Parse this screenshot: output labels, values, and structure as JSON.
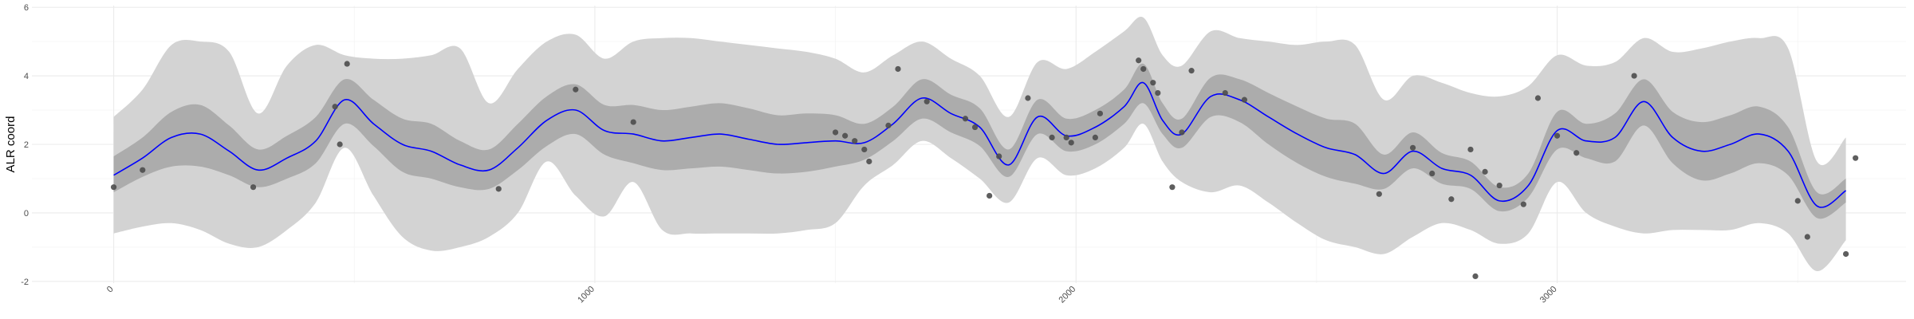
{
  "chart_data": {
    "type": "line",
    "title": "",
    "xlabel": "",
    "ylabel": "ALR coord",
    "xlim": [
      -170,
      3725
    ],
    "ylim": [
      -2.05,
      6.05
    ],
    "x_ticks": [
      0,
      1000,
      2000,
      3000
    ],
    "y_ticks": [
      -2,
      0,
      2,
      4,
      6
    ],
    "x_tick_labels": [
      "0",
      "1000",
      "2000",
      "3000"
    ],
    "y_tick_labels": [
      "-2",
      "0",
      "2",
      "4",
      "6"
    ],
    "grid": true,
    "colors": {
      "mean_line": "#0000ff",
      "inner_band": "#acacac",
      "outer_band": "#d3d3d3",
      "points": "#4d4d4d",
      "grid": "#ebebeb"
    },
    "series": [
      {
        "type": "line",
        "x": [
          0,
          60,
          120,
          180,
          240,
          300,
          360,
          420,
          480,
          540,
          600,
          660,
          720,
          780,
          840,
          900,
          960,
          1020,
          1080,
          1140,
          1200,
          1260,
          1320,
          1380,
          1440,
          1500,
          1560,
          1620,
          1680,
          1740,
          1800,
          1860,
          1920,
          1980,
          2040,
          2100,
          2140,
          2180,
          2220,
          2280,
          2340,
          2400,
          2460,
          2520,
          2580,
          2640,
          2700,
          2760,
          2820,
          2880,
          2940,
          3000,
          3060,
          3120,
          3180,
          3240,
          3300,
          3360,
          3420,
          3480,
          3540,
          3600
        ],
        "y": [
          1.1,
          1.6,
          2.2,
          2.3,
          1.8,
          1.25,
          1.6,
          2.1,
          3.3,
          2.6,
          2.0,
          1.8,
          1.4,
          1.25,
          1.9,
          2.7,
          3.0,
          2.4,
          2.3,
          2.1,
          2.2,
          2.3,
          2.15,
          2.0,
          2.05,
          2.1,
          2.05,
          2.6,
          3.35,
          2.9,
          2.5,
          1.4,
          2.8,
          2.25,
          2.5,
          3.1,
          3.8,
          2.7,
          2.3,
          3.4,
          3.3,
          2.8,
          2.3,
          1.9,
          1.7,
          1.15,
          1.8,
          1.3,
          1.1,
          0.35,
          0.8,
          2.4,
          2.1,
          2.2,
          3.25,
          2.2,
          1.8,
          2.0,
          2.3,
          1.8,
          0.2,
          0.65
        ]
      },
      {
        "type": "band",
        "name": "inner",
        "x": [
          0,
          60,
          120,
          180,
          240,
          300,
          360,
          420,
          480,
          540,
          600,
          660,
          720,
          780,
          840,
          900,
          960,
          1020,
          1080,
          1140,
          1200,
          1260,
          1320,
          1380,
          1440,
          1500,
          1560,
          1620,
          1680,
          1740,
          1800,
          1860,
          1920,
          1980,
          2040,
          2100,
          2140,
          2180,
          2220,
          2280,
          2340,
          2400,
          2460,
          2520,
          2580,
          2640,
          2700,
          2760,
          2820,
          2880,
          2940,
          3000,
          3060,
          3120,
          3180,
          3240,
          3300,
          3360,
          3420,
          3480,
          3540,
          3600
        ],
        "lower": [
          0.6,
          1.05,
          1.35,
          1.35,
          1.1,
          0.75,
          1.0,
          1.45,
          2.6,
          1.95,
          1.2,
          1.0,
          0.75,
          0.7,
          1.25,
          1.95,
          2.3,
          1.7,
          1.45,
          1.25,
          1.3,
          1.35,
          1.25,
          1.15,
          1.2,
          1.35,
          1.55,
          2.1,
          2.75,
          2.35,
          1.95,
          1.05,
          2.3,
          1.8,
          2.0,
          2.6,
          3.2,
          2.3,
          1.9,
          2.8,
          2.65,
          2.0,
          1.45,
          1.05,
          0.85,
          0.7,
          1.3,
          0.85,
          0.7,
          0.05,
          0.45,
          1.85,
          1.6,
          1.5,
          2.55,
          1.45,
          0.95,
          1.15,
          1.45,
          1.1,
          -0.15,
          0.3
        ],
        "upper": [
          1.65,
          2.2,
          2.95,
          3.15,
          2.55,
          1.85,
          2.25,
          2.8,
          3.9,
          3.3,
          2.75,
          2.6,
          2.1,
          1.85,
          2.6,
          3.4,
          3.75,
          3.15,
          3.15,
          3.0,
          3.1,
          3.2,
          3.05,
          2.85,
          2.9,
          2.85,
          2.6,
          3.1,
          3.9,
          3.45,
          3.05,
          1.85,
          3.3,
          2.75,
          3.0,
          3.6,
          4.35,
          3.2,
          2.75,
          3.95,
          3.9,
          3.5,
          3.1,
          2.75,
          2.6,
          1.7,
          2.35,
          1.75,
          1.5,
          0.75,
          1.15,
          2.95,
          2.6,
          2.9,
          3.9,
          2.95,
          2.65,
          2.85,
          3.1,
          2.5,
          0.6,
          1.0
        ]
      },
      {
        "type": "band",
        "name": "outer",
        "x": [
          0,
          60,
          120,
          180,
          240,
          300,
          360,
          420,
          480,
          540,
          600,
          660,
          720,
          780,
          840,
          900,
          960,
          1020,
          1080,
          1140,
          1200,
          1260,
          1320,
          1380,
          1440,
          1500,
          1560,
          1620,
          1680,
          1740,
          1800,
          1860,
          1920,
          1980,
          2040,
          2100,
          2140,
          2180,
          2220,
          2280,
          2340,
          2400,
          2460,
          2520,
          2580,
          2640,
          2700,
          2760,
          2820,
          2880,
          2940,
          3000,
          3060,
          3120,
          3180,
          3240,
          3300,
          3360,
          3420,
          3480,
          3540,
          3600
        ],
        "lower": [
          -0.6,
          -0.4,
          -0.3,
          -0.5,
          -0.9,
          -1.0,
          -0.5,
          0.3,
          1.9,
          0.5,
          -0.7,
          -1.1,
          -1.0,
          -0.7,
          0.0,
          1.5,
          0.5,
          -0.1,
          0.9,
          -0.5,
          -0.6,
          -0.6,
          -0.6,
          -0.6,
          -0.5,
          -0.3,
          0.8,
          1.4,
          2.1,
          1.6,
          1.0,
          0.3,
          1.6,
          1.1,
          1.3,
          1.9,
          2.6,
          1.5,
          0.9,
          0.6,
          0.8,
          0.3,
          -0.3,
          -0.8,
          -1.0,
          -1.2,
          -0.7,
          -0.3,
          -0.5,
          -0.9,
          -0.6,
          0.9,
          0.0,
          -0.4,
          -0.6,
          -0.5,
          -0.5,
          -0.5,
          -0.3,
          -0.6,
          -1.7,
          -0.8
        ],
        "upper": [
          2.8,
          3.6,
          4.9,
          5.0,
          4.7,
          2.9,
          4.3,
          4.9,
          4.6,
          4.5,
          4.5,
          4.6,
          4.8,
          3.2,
          4.2,
          5.0,
          5.2,
          4.5,
          5.0,
          5.1,
          5.1,
          5.0,
          4.9,
          4.8,
          4.7,
          4.5,
          4.1,
          4.6,
          5.0,
          4.5,
          4.0,
          2.8,
          4.4,
          4.2,
          4.7,
          5.3,
          5.7,
          4.6,
          4.3,
          5.3,
          5.1,
          5.0,
          4.9,
          5.0,
          4.9,
          3.3,
          4.0,
          3.8,
          3.5,
          3.4,
          3.7,
          4.6,
          4.3,
          4.4,
          5.1,
          4.7,
          4.8,
          5.0,
          5.1,
          4.8,
          1.5,
          2.2
        ]
      },
      {
        "type": "scatter",
        "x": [
          0,
          60,
          290,
          460,
          470,
          485,
          800,
          960,
          1080,
          1500,
          1520,
          1540,
          1560,
          1570,
          1610,
          1630,
          1690,
          1770,
          1790,
          1820,
          1840,
          1900,
          1950,
          1980,
          1990,
          2040,
          2050,
          2130,
          2140,
          2160,
          2170,
          2200,
          2220,
          2240,
          2310,
          2350,
          2630,
          2700,
          2740,
          2780,
          2820,
          2830,
          2850,
          2880,
          2930,
          2960,
          3000,
          3040,
          3160,
          3500,
          3520,
          3600,
          3620
        ],
        "y": [
          0.75,
          1.25,
          0.75,
          3.1,
          2.0,
          4.35,
          0.7,
          3.6,
          2.65,
          2.35,
          2.25,
          2.1,
          1.85,
          1.5,
          2.55,
          4.2,
          3.25,
          2.75,
          2.5,
          0.5,
          1.65,
          3.35,
          2.2,
          2.2,
          2.05,
          2.2,
          2.9,
          4.45,
          4.2,
          3.8,
          3.5,
          0.75,
          2.35,
          4.15,
          3.5,
          3.3,
          0.55,
          1.9,
          1.15,
          0.4,
          1.85,
          -1.85,
          1.2,
          0.8,
          0.25,
          3.35,
          2.25,
          1.75,
          4.0,
          0.35,
          -0.7,
          -1.2,
          1.6
        ]
      }
    ]
  }
}
